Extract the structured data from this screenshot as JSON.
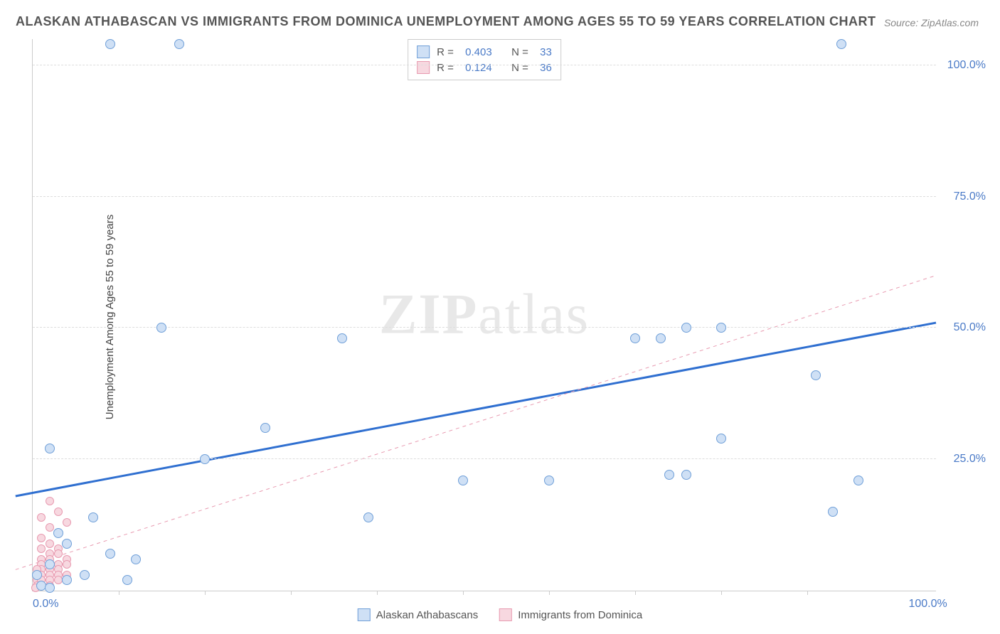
{
  "title": "ALASKAN ATHABASCAN VS IMMIGRANTS FROM DOMINICA UNEMPLOYMENT AMONG AGES 55 TO 59 YEARS CORRELATION CHART",
  "source": "Source: ZipAtlas.com",
  "ylabel": "Unemployment Among Ages 55 to 59 years",
  "watermark_a": "ZIP",
  "watermark_b": "atlas",
  "chart": {
    "type": "scatter",
    "xlim": [
      0,
      105
    ],
    "ylim": [
      0,
      105
    ],
    "grid_color": "#dddddd",
    "background_color": "#ffffff",
    "ytick_labels": [
      "25.0%",
      "50.0%",
      "75.0%",
      "100.0%"
    ],
    "ytick_vals": [
      25,
      50,
      75,
      100
    ],
    "xtick_labels": [
      "0.0%",
      "100.0%"
    ],
    "xtick_vals": [
      0,
      100
    ],
    "xtick_minor": [
      10,
      20,
      30,
      40,
      50,
      60,
      70,
      80,
      90
    ]
  },
  "series": [
    {
      "name": "Alaskan Athabascans",
      "R": "0.403",
      "N": "33",
      "color_fill": "#cfe0f5",
      "color_stroke": "#6f9fd8",
      "marker_size": 14,
      "trend": {
        "x1": -2,
        "y1": 18,
        "x2": 105,
        "y2": 51,
        "stroke": "#2f6fd0",
        "width": 3,
        "dash": ""
      },
      "points": [
        [
          9,
          104
        ],
        [
          17,
          104
        ],
        [
          94,
          104
        ],
        [
          15,
          50
        ],
        [
          76,
          50
        ],
        [
          80,
          50
        ],
        [
          36,
          48
        ],
        [
          70,
          48
        ],
        [
          73,
          48
        ],
        [
          91,
          41
        ],
        [
          80,
          29
        ],
        [
          96,
          21
        ],
        [
          27,
          31
        ],
        [
          20,
          25
        ],
        [
          2,
          27
        ],
        [
          74,
          22
        ],
        [
          76,
          22
        ],
        [
          93,
          15
        ],
        [
          39,
          14
        ],
        [
          60,
          21
        ],
        [
          50,
          21
        ],
        [
          7,
          14
        ],
        [
          9,
          7
        ],
        [
          12,
          6
        ],
        [
          4,
          9
        ],
        [
          3,
          11
        ],
        [
          6,
          3
        ],
        [
          11,
          2
        ],
        [
          4,
          2
        ],
        [
          2,
          5
        ],
        [
          1,
          1
        ],
        [
          0.5,
          3
        ],
        [
          2,
          0.5
        ]
      ]
    },
    {
      "name": "Immigrants from Dominica",
      "R": "0.124",
      "N": "36",
      "color_fill": "#f7d8e0",
      "color_stroke": "#e89ab0",
      "marker_size": 12,
      "trend": {
        "x1": -2,
        "y1": 4,
        "x2": 105,
        "y2": 60,
        "stroke": "#e89ab0",
        "width": 1,
        "dash": "5,5"
      },
      "points": [
        [
          2,
          17
        ],
        [
          3,
          15
        ],
        [
          1,
          14
        ],
        [
          4,
          13
        ],
        [
          2,
          12
        ],
        [
          3,
          11
        ],
        [
          1,
          10
        ],
        [
          2,
          9
        ],
        [
          4,
          9
        ],
        [
          3,
          8
        ],
        [
          1,
          8
        ],
        [
          2,
          7
        ],
        [
          3,
          7
        ],
        [
          1,
          6
        ],
        [
          2,
          6
        ],
        [
          4,
          6
        ],
        [
          3,
          5
        ],
        [
          1,
          5
        ],
        [
          2,
          5
        ],
        [
          4,
          5
        ],
        [
          3,
          4
        ],
        [
          1,
          4
        ],
        [
          2,
          4
        ],
        [
          0.5,
          4
        ],
        [
          3,
          3
        ],
        [
          1,
          3
        ],
        [
          2,
          3
        ],
        [
          4,
          3
        ],
        [
          0.5,
          2
        ],
        [
          1,
          2
        ],
        [
          2,
          2
        ],
        [
          3,
          2
        ],
        [
          0.5,
          1
        ],
        [
          1,
          1
        ],
        [
          2,
          1
        ],
        [
          0.3,
          0.5
        ]
      ]
    }
  ],
  "legend_labels": {
    "r": "R =",
    "n": "N ="
  }
}
